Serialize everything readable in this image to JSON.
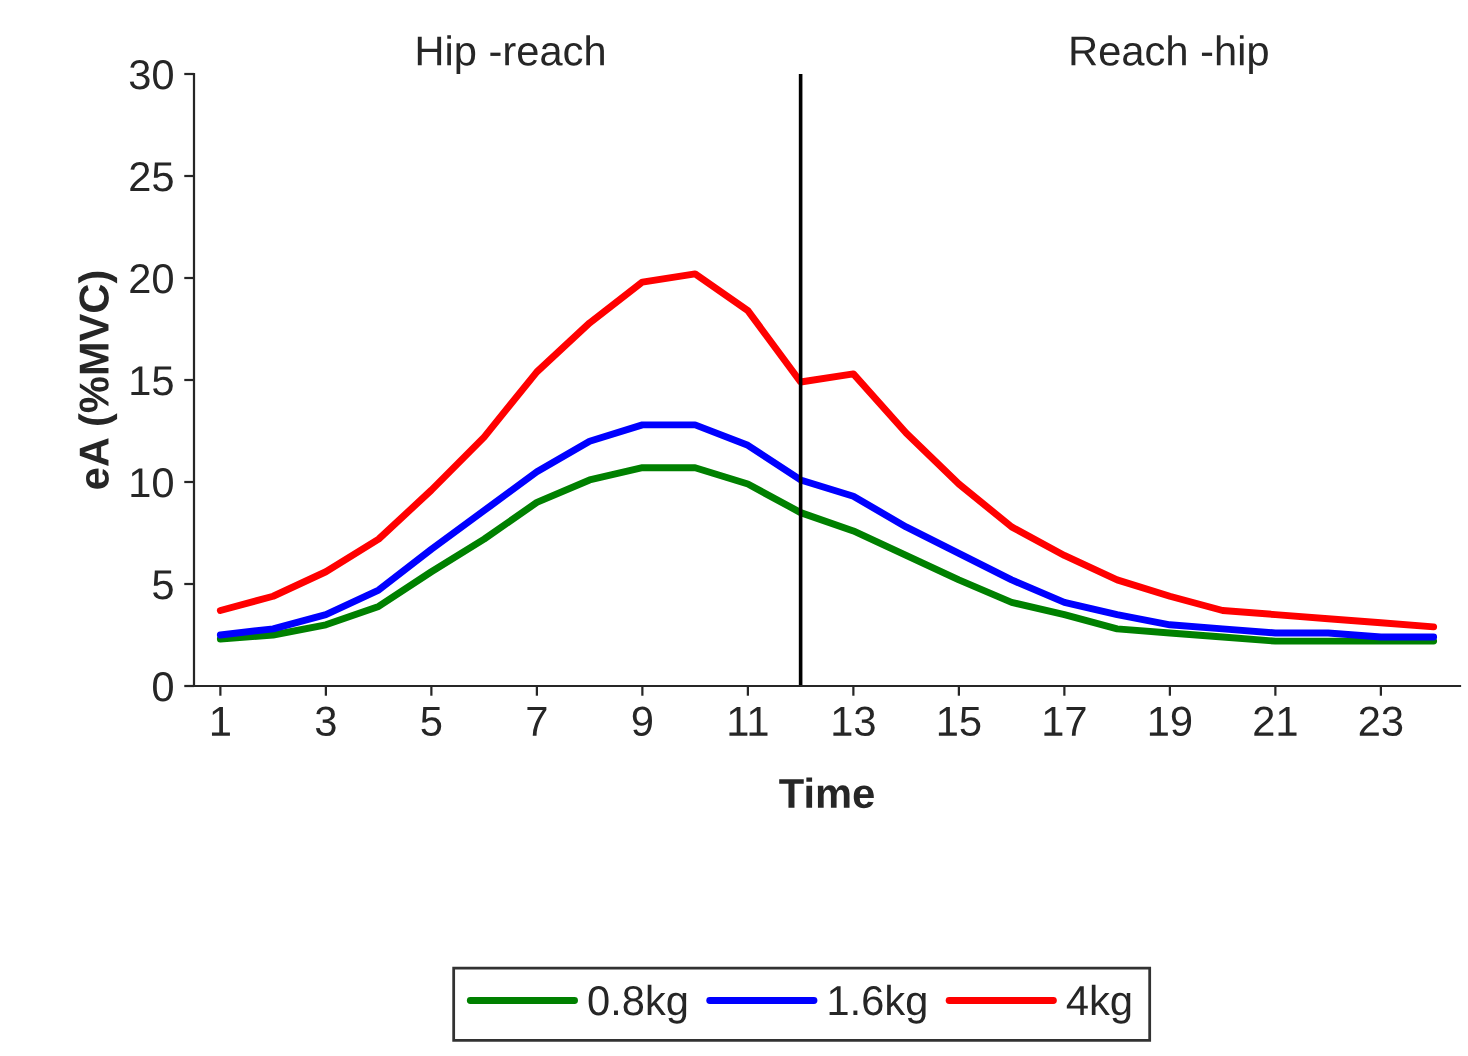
{
  "chart_data": {
    "type": "line",
    "xlabel": "Time",
    "ylabel": "eA (%MVC)",
    "x": [
      1,
      2,
      3,
      4,
      5,
      6,
      7,
      8,
      9,
      10,
      11,
      12,
      13,
      14,
      15,
      16,
      17,
      18,
      19,
      20,
      21,
      22,
      23,
      24
    ],
    "xlim": [
      0.5,
      24.5
    ],
    "xticks": [
      1,
      3,
      5,
      7,
      9,
      11,
      13,
      15,
      17,
      19,
      21,
      23
    ],
    "ylim": [
      0,
      30
    ],
    "yticks": [
      0,
      5,
      10,
      15,
      20,
      25,
      30
    ],
    "series": [
      {
        "name": "0.8kg",
        "color": "#008000",
        "values": [
          2.3,
          2.5,
          3.0,
          3.9,
          5.6,
          7.2,
          9.0,
          10.1,
          10.7,
          10.7,
          9.9,
          8.5,
          7.6,
          6.4,
          5.2,
          4.1,
          3.5,
          2.8,
          2.6,
          2.4,
          2.2,
          2.2,
          2.2,
          2.2
        ]
      },
      {
        "name": "1.6kg",
        "color": "#0000ff",
        "values": [
          2.5,
          2.8,
          3.5,
          4.7,
          6.7,
          8.6,
          10.5,
          12.0,
          12.8,
          12.8,
          11.8,
          10.1,
          9.3,
          7.8,
          6.5,
          5.2,
          4.1,
          3.5,
          3.0,
          2.8,
          2.6,
          2.6,
          2.4,
          2.4
        ]
      },
      {
        "name": "4kg",
        "color": "#ff0000",
        "values": [
          3.7,
          4.4,
          5.6,
          7.2,
          9.6,
          12.2,
          15.4,
          17.8,
          19.8,
          20.2,
          18.4,
          14.9,
          15.3,
          12.4,
          9.9,
          7.8,
          6.4,
          5.2,
          4.4,
          3.7,
          3.5,
          3.3,
          3.1,
          2.9
        ]
      }
    ],
    "ref_lines": [
      {
        "axis": "x",
        "value": 12,
        "color": "#000000"
      }
    ],
    "annotations": [
      "Hip -reach",
      "Reach -hip"
    ],
    "grid": false,
    "legend": "bottom",
    "marker": "none",
    "line_style": "solid"
  }
}
